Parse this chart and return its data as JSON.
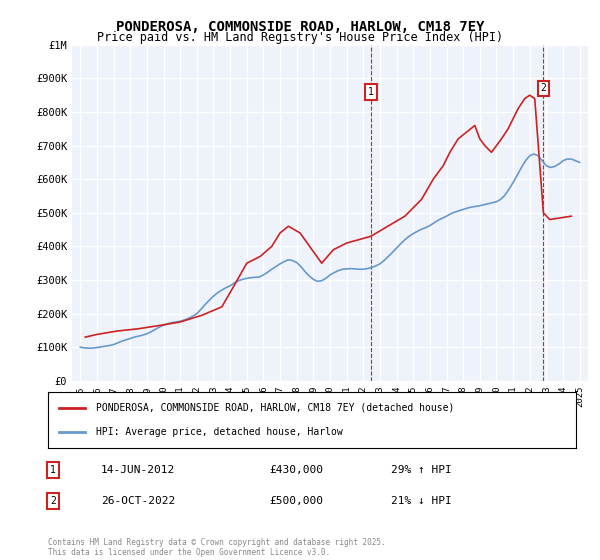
{
  "title": "PONDEROSA, COMMONSIDE ROAD, HARLOW, CM18 7EY",
  "subtitle": "Price paid vs. HM Land Registry's House Price Index (HPI)",
  "bg_color": "#eef2fb",
  "plot_bg_color": "#eef2fb",
  "grid_color": "#ffffff",
  "line1_color": "#cc2222",
  "line2_color": "#6699cc",
  "ylim": [
    0,
    1000000
  ],
  "yticks": [
    0,
    100000,
    200000,
    300000,
    400000,
    500000,
    600000,
    700000,
    800000,
    900000,
    1000000
  ],
  "ytick_labels": [
    "£0",
    "£100K",
    "£200K",
    "£300K",
    "£400K",
    "£500K",
    "£600K",
    "£700K",
    "£800K",
    "£900K",
    "£1M"
  ],
  "xlim_start": 1995,
  "xlim_end": 2025.5,
  "xticks": [
    1995,
    1996,
    1997,
    1998,
    1999,
    2000,
    2001,
    2002,
    2003,
    2004,
    2005,
    2006,
    2007,
    2008,
    2009,
    2010,
    2011,
    2012,
    2013,
    2014,
    2015,
    2016,
    2017,
    2018,
    2019,
    2020,
    2021,
    2022,
    2023,
    2024,
    2025
  ],
  "marker1_x": 2012.45,
  "marker1_y": 430000,
  "marker1_label": "1",
  "marker1_date": "14-JUN-2012",
  "marker1_price": "£430,000",
  "marker1_hpi": "29% ↑ HPI",
  "marker2_x": 2022.82,
  "marker2_y": 500000,
  "marker2_label": "2",
  "marker2_date": "26-OCT-2022",
  "marker2_price": "£500,000",
  "marker2_hpi": "21% ↓ HPI",
  "legend1_label": "PONDEROSA, COMMONSIDE ROAD, HARLOW, CM18 7EY (detached house)",
  "legend2_label": "HPI: Average price, detached house, Harlow",
  "footer": "Contains HM Land Registry data © Crown copyright and database right 2025.\nThis data is licensed under the Open Government Licence v3.0.",
  "hpi_data_x": [
    1995.0,
    1995.25,
    1995.5,
    1995.75,
    1996.0,
    1996.25,
    1996.5,
    1996.75,
    1997.0,
    1997.25,
    1997.5,
    1997.75,
    1998.0,
    1998.25,
    1998.5,
    1998.75,
    1999.0,
    1999.25,
    1999.5,
    1999.75,
    2000.0,
    2000.25,
    2000.5,
    2000.75,
    2001.0,
    2001.25,
    2001.5,
    2001.75,
    2002.0,
    2002.25,
    2002.5,
    2002.75,
    2003.0,
    2003.25,
    2003.5,
    2003.75,
    2004.0,
    2004.25,
    2004.5,
    2004.75,
    2005.0,
    2005.25,
    2005.5,
    2005.75,
    2006.0,
    2006.25,
    2006.5,
    2006.75,
    2007.0,
    2007.25,
    2007.5,
    2007.75,
    2008.0,
    2008.25,
    2008.5,
    2008.75,
    2009.0,
    2009.25,
    2009.5,
    2009.75,
    2010.0,
    2010.25,
    2010.5,
    2010.75,
    2011.0,
    2011.25,
    2011.5,
    2011.75,
    2012.0,
    2012.25,
    2012.5,
    2012.75,
    2013.0,
    2013.25,
    2013.5,
    2013.75,
    2014.0,
    2014.25,
    2014.5,
    2014.75,
    2015.0,
    2015.25,
    2015.5,
    2015.75,
    2016.0,
    2016.25,
    2016.5,
    2016.75,
    2017.0,
    2017.25,
    2017.5,
    2017.75,
    2018.0,
    2018.25,
    2018.5,
    2018.75,
    2019.0,
    2019.25,
    2019.5,
    2019.75,
    2020.0,
    2020.25,
    2020.5,
    2020.75,
    2021.0,
    2021.25,
    2021.5,
    2021.75,
    2022.0,
    2022.25,
    2022.5,
    2022.75,
    2023.0,
    2023.25,
    2023.5,
    2023.75,
    2024.0,
    2024.25,
    2024.5,
    2024.75,
    2025.0
  ],
  "hpi_data_y": [
    100000,
    98000,
    97000,
    97500,
    99000,
    101000,
    103000,
    105000,
    108000,
    113000,
    118000,
    122000,
    126000,
    130000,
    133000,
    136000,
    140000,
    146000,
    153000,
    160000,
    166000,
    170000,
    173000,
    175000,
    177000,
    181000,
    186000,
    192000,
    200000,
    213000,
    227000,
    240000,
    252000,
    262000,
    270000,
    277000,
    283000,
    291000,
    298000,
    302000,
    305000,
    307000,
    308000,
    309000,
    315000,
    323000,
    332000,
    340000,
    348000,
    355000,
    360000,
    358000,
    352000,
    340000,
    325000,
    312000,
    302000,
    296000,
    298000,
    305000,
    315000,
    322000,
    328000,
    332000,
    333000,
    334000,
    333000,
    332000,
    332000,
    334000,
    337000,
    342000,
    348000,
    358000,
    370000,
    382000,
    395000,
    408000,
    420000,
    430000,
    438000,
    445000,
    451000,
    456000,
    462000,
    470000,
    478000,
    484000,
    490000,
    497000,
    502000,
    506000,
    510000,
    514000,
    517000,
    519000,
    521000,
    524000,
    527000,
    530000,
    533000,
    540000,
    552000,
    570000,
    590000,
    612000,
    635000,
    655000,
    670000,
    675000,
    670000,
    655000,
    640000,
    635000,
    638000,
    645000,
    655000,
    660000,
    660000,
    655000,
    650000
  ],
  "price_data_x": [
    1995.3,
    1996.0,
    1997.2,
    1998.5,
    1999.8,
    2001.0,
    2002.3,
    2003.5,
    2004.2,
    2005.0,
    2005.8,
    2006.5,
    2007.0,
    2007.5,
    2008.2,
    2009.5,
    2010.2,
    2011.0,
    2012.45,
    2014.5,
    2015.5,
    2016.2,
    2016.8,
    2017.2,
    2017.7,
    2018.2,
    2018.7,
    2019.0,
    2019.3,
    2019.7,
    2020.0,
    2020.3,
    2020.7,
    2021.0,
    2021.3,
    2021.7,
    2022.0,
    2022.3,
    2022.82,
    2023.2,
    2024.5
  ],
  "price_data_y": [
    130000,
    138000,
    148000,
    155000,
    165000,
    175000,
    195000,
    220000,
    280000,
    350000,
    370000,
    400000,
    440000,
    460000,
    440000,
    350000,
    390000,
    410000,
    430000,
    490000,
    540000,
    600000,
    640000,
    680000,
    720000,
    740000,
    760000,
    720000,
    700000,
    680000,
    700000,
    720000,
    750000,
    780000,
    810000,
    840000,
    850000,
    840000,
    500000,
    480000,
    490000
  ]
}
